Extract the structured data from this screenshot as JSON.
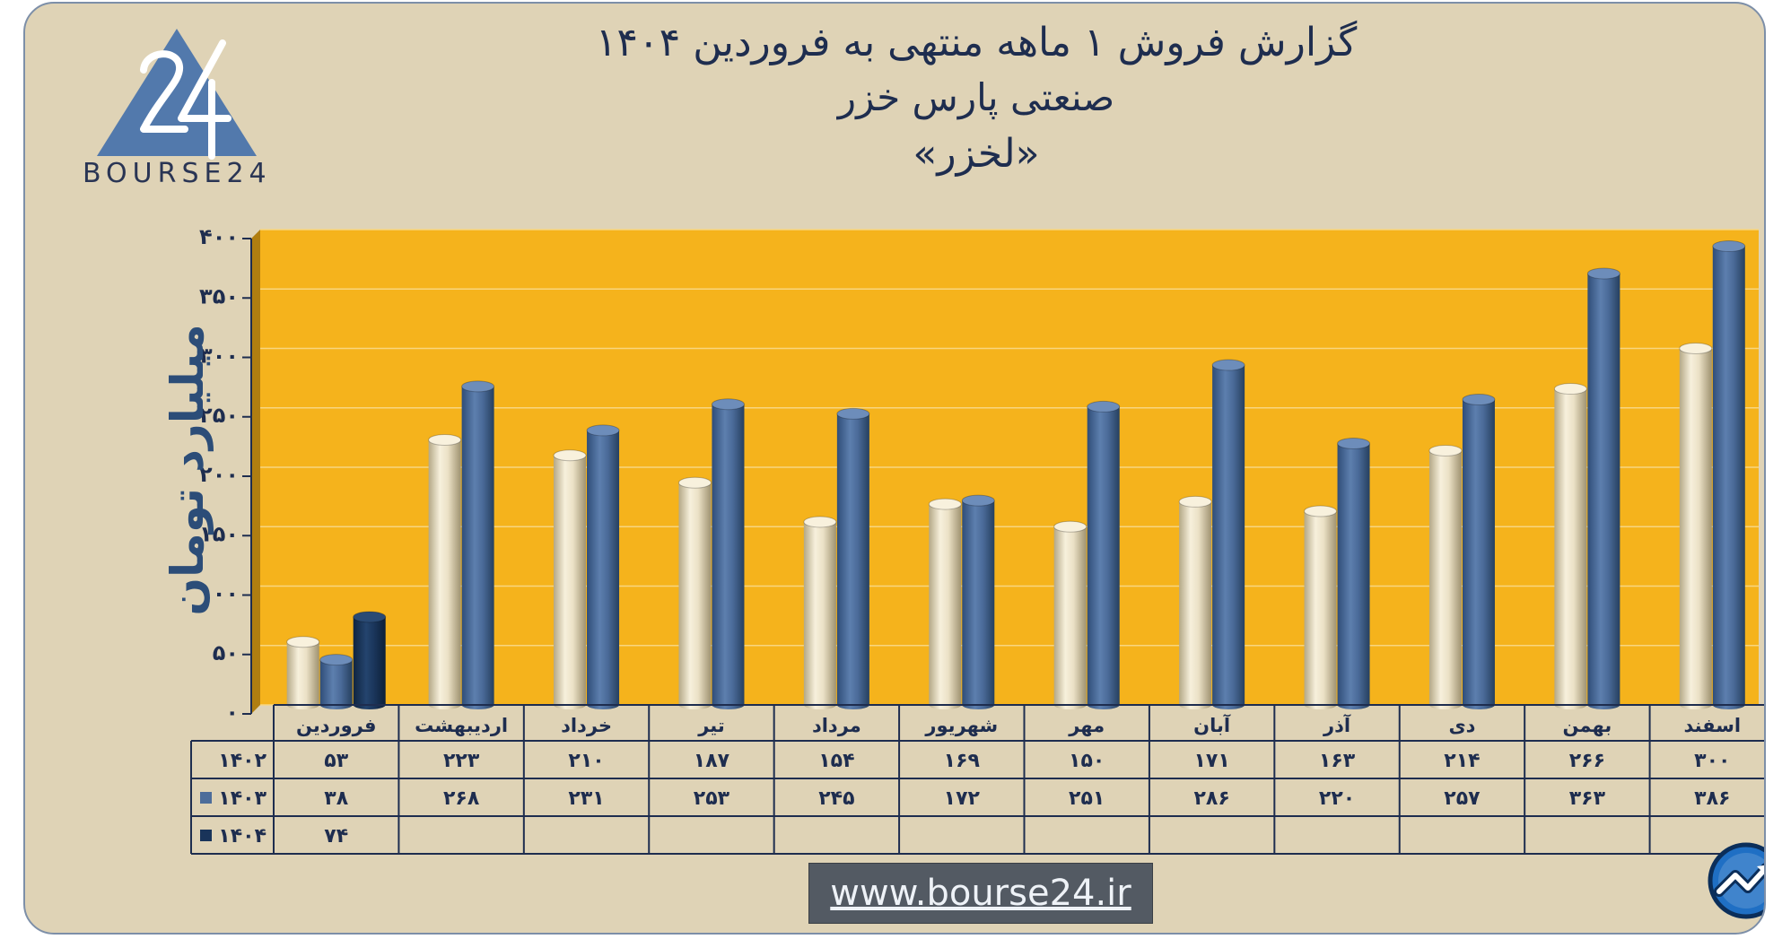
{
  "title": {
    "line1": "گزارش  فروش ۱ ماهه منتهی به فروردین ۱۴۰۴",
    "line2": "صنعتی پارس خزر",
    "line3": "«لخزر»"
  },
  "logo": {
    "text": "BOURSE24"
  },
  "footer": {
    "url": "www.bourse24.ir"
  },
  "colors": {
    "plot_background": "#f5b31c",
    "card_background": "#dfd3b6",
    "series_1402": "#efe6cf",
    "series_1403": "#4d6d9a",
    "series_1404": "#19345a",
    "text": "#1e2d4f"
  },
  "chart_data": {
    "type": "bar",
    "title": "گزارش  فروش ۱ ماهه منتهی به فروردین ۱۴۰۴",
    "ylabel": "میلیارد تومان",
    "ylim": [
      0,
      400
    ],
    "yticks": [
      0,
      50,
      100,
      150,
      200,
      250,
      300,
      350,
      400
    ],
    "ytick_labels": [
      "۰",
      "۵۰",
      "۱۰۰",
      "۱۵۰",
      "۲۰۰",
      "۲۵۰",
      "۳۰۰",
      "۳۵۰",
      "۴۰۰"
    ],
    "grid": true,
    "legend": "table-left",
    "categories": [
      "فروردین",
      "اردیبهشت",
      "خرداد",
      "تیر",
      "مرداد",
      "شهریور",
      "مهر",
      "آبان",
      "آذر",
      "دی",
      "بهمن",
      "اسفند"
    ],
    "series": [
      {
        "name": "۱۴۰۲",
        "values": [
          53,
          223,
          210,
          187,
          154,
          169,
          150,
          171,
          163,
          214,
          266,
          300
        ],
        "labels": [
          "۵۳",
          "۲۲۳",
          "۲۱۰",
          "۱۸۷",
          "۱۵۴",
          "۱۶۹",
          "۱۵۰",
          "۱۷۱",
          "۱۶۳",
          "۲۱۴",
          "۲۶۶",
          "۳۰۰"
        ]
      },
      {
        "name": "۱۴۰۳",
        "values": [
          38,
          268,
          231,
          253,
          245,
          172,
          251,
          286,
          220,
          257,
          363,
          386
        ],
        "labels": [
          "۳۸",
          "۲۶۸",
          "۲۳۱",
          "۲۵۳",
          "۲۴۵",
          "۱۷۲",
          "۲۵۱",
          "۲۸۶",
          "۲۲۰",
          "۲۵۷",
          "۳۶۳",
          "۳۸۶"
        ]
      },
      {
        "name": "۱۴۰۴",
        "values": [
          74,
          null,
          null,
          null,
          null,
          null,
          null,
          null,
          null,
          null,
          null,
          null
        ],
        "labels": [
          "۷۴",
          "",
          "",
          "",
          "",
          "",
          "",
          "",
          "",
          "",
          "",
          ""
        ]
      }
    ]
  }
}
